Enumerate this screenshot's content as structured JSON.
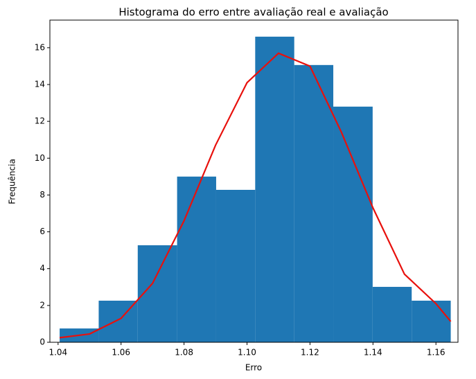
{
  "chart_data": {
    "type": "histogram",
    "title": "Histograma do erro entre avaliação real e avaliação",
    "xlabel": "Erro",
    "ylabel": "Frequência",
    "bins": [
      1.0405,
      1.0529,
      1.0653,
      1.0778,
      1.0902,
      1.1026,
      1.115,
      1.1274,
      1.1399,
      1.1523,
      1.1647
    ],
    "values": [
      0.75,
      2.26,
      5.27,
      9.0,
      8.28,
      16.6,
      15.06,
      12.8,
      3.01,
      2.26
    ],
    "color": "#1f77b4",
    "curve": {
      "color": "#e8100c",
      "x": [
        1.0405,
        1.05,
        1.06,
        1.07,
        1.08,
        1.09,
        1.1,
        1.11,
        1.12,
        1.13,
        1.14,
        1.15,
        1.16,
        1.1647
      ],
      "y": [
        0.25,
        0.45,
        1.3,
        3.2,
        6.6,
        10.7,
        14.1,
        15.7,
        15.0,
        11.4,
        7.3,
        3.7,
        2.1,
        1.13
      ]
    },
    "xlim": [
      1.0374,
      1.167
    ],
    "ylim": [
      0,
      17.5
    ],
    "xticks": [
      1.04,
      1.06,
      1.08,
      {
        "value": 1.1,
        "label": "1.10"
      },
      1.12,
      1.14,
      1.16
    ],
    "yticks": [
      0,
      2,
      4,
      6,
      8,
      10,
      12,
      14,
      16
    ]
  }
}
